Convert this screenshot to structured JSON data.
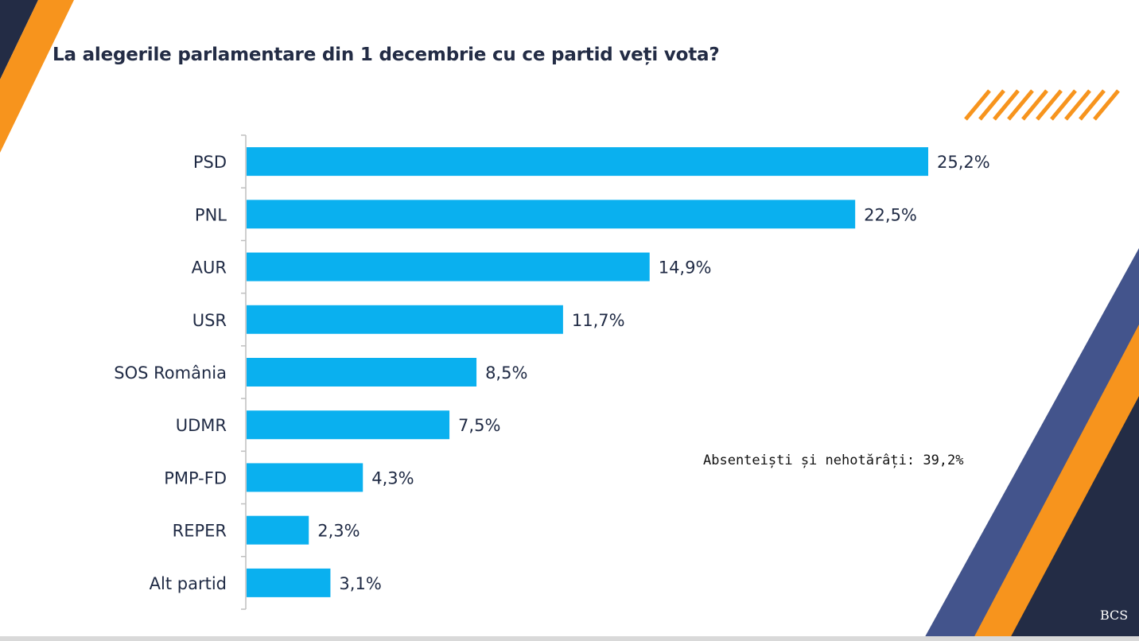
{
  "title": "La alegerile parlamentare din 1 decembrie cu ce partid veți vota?",
  "note": "Absenteiști și nehotărâți: 39,2%",
  "logo_text": "BCS",
  "colors": {
    "bar": "#0ab0ef",
    "navy": "#232c45",
    "orange": "#f7941d",
    "slate_blue": "#43548c"
  },
  "chart_data": {
    "type": "bar",
    "orientation": "horizontal",
    "categories": [
      "PSD",
      "PNL",
      "AUR",
      "USR",
      "SOS România",
      "UDMR",
      "PMP-FD",
      "REPER",
      "Alt partid"
    ],
    "values": [
      25.2,
      22.5,
      14.9,
      11.7,
      8.5,
      7.5,
      4.3,
      2.3,
      3.1
    ],
    "value_labels": [
      "25,2%",
      "22,5%",
      "14,9%",
      "11,7%",
      "8,5%",
      "7,5%",
      "4,3%",
      "2,3%",
      "3,1%"
    ],
    "title": "La alegerile parlamentare din 1 decembrie cu ce partid veți vota?",
    "xlabel": "",
    "ylabel": "",
    "xlim": [
      0,
      25.2
    ],
    "grid": false,
    "legend": "none"
  }
}
